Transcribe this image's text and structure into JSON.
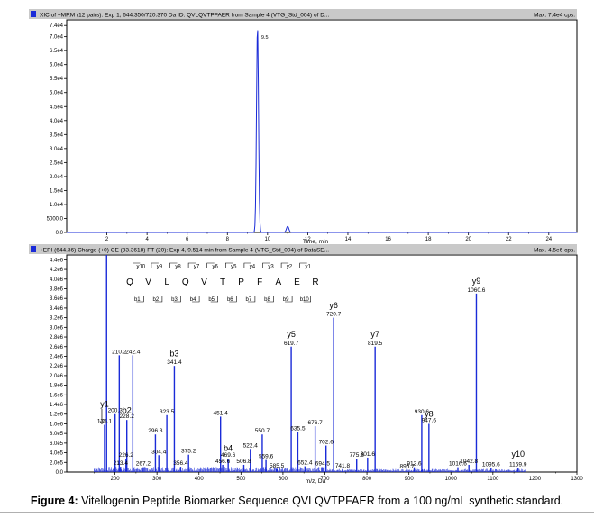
{
  "caption": {
    "label": "Figure 4:",
    "text": "Vitellogenin Peptide Biomarker Sequence QVLQVTPFAER from a 100 ng/mL synthetic standard."
  },
  "colors": {
    "trace": "#1a2bd8",
    "header": "#c9c9c9",
    "frame": "#000000"
  },
  "chart_data": [
    {
      "type": "line",
      "header": "XIC of +MRM (12 pairs): Exp 1, 644.350/720.370 Da ID: QVLQVTPFAER from Sample 4 (VTG_Std_004) of D...",
      "header_right": "Max. 7.4e4 cps.",
      "xlabel": "Time, min",
      "xlim": [
        0,
        25.4
      ],
      "ylim": [
        0,
        76000
      ],
      "x_ticks": [
        2,
        4,
        6,
        8,
        10,
        12,
        14,
        16,
        18,
        20,
        22,
        24
      ],
      "x_tick_labels": [
        "2",
        "4",
        "6",
        "8",
        "10",
        "12",
        "14",
        "16",
        "18",
        "20",
        "22",
        "24"
      ],
      "y_ticks": [
        0,
        5000,
        10000,
        15000,
        20000,
        25000,
        30000,
        35000,
        40000,
        45000,
        50000,
        55000,
        60000,
        65000,
        70000,
        74000
      ],
      "y_tick_labels": [
        "0.0",
        "5000.0",
        "1.0e4",
        "1.5e4",
        "2.0e4",
        "2.5e4",
        "3.0e4",
        "3.5e4",
        "4.0e4",
        "4.5e4",
        "5.0e4",
        "5.5e4",
        "6.0e4",
        "6.5e4",
        "7.0e4",
        "7.4e4"
      ],
      "peaks": [
        {
          "rt": 9.5,
          "height": 74000,
          "label": "9.5"
        },
        {
          "rt": 11.0,
          "height": 2200,
          "label": ""
        }
      ]
    },
    {
      "type": "bar",
      "header": "+EPI (644.36) Charge (+0) CE (33.3618) FT (20): Exp 4, 9.514 min from Sample 4 (VTG_Std_004) of DataSE...",
      "header_right": "Max. 4.5e6 cps.",
      "xlabel": "m/z, Da",
      "xlim": [
        85,
        1300
      ],
      "ylim": [
        0,
        4500000
      ],
      "x_ticks": [
        200,
        300,
        400,
        500,
        600,
        700,
        800,
        900,
        1000,
        1100,
        1200,
        1300
      ],
      "x_tick_labels": [
        "200",
        "300",
        "400",
        "500",
        "600",
        "700",
        "800",
        "900",
        "1000",
        "1100",
        "1200",
        "1300"
      ],
      "y_ticks": [
        0,
        200000,
        400000,
        600000,
        800000,
        1000000,
        1200000,
        1400000,
        1600000,
        1800000,
        2000000,
        2200000,
        2400000,
        2600000,
        2800000,
        3000000,
        3200000,
        3400000,
        3600000,
        3800000,
        4000000,
        4200000,
        4400000
      ],
      "y_tick_labels": [
        "0.0",
        "2.0e5",
        "4.0e5",
        "6.0e5",
        "8.0e5",
        "1.0e6",
        "1.2e6",
        "1.4e6",
        "1.6e6",
        "1.8e6",
        "2.0e6",
        "2.2e6",
        "2.4e6",
        "2.6e6",
        "2.8e6",
        "3.0e6",
        "3.2e6",
        "3.4e6",
        "3.6e6",
        "3.8e6",
        "4.0e6",
        "4.2e6",
        "4.4e6"
      ],
      "peaks": [
        {
          "mz": 175.1,
          "intensity": 980000,
          "label": "175.1"
        },
        {
          "mz": 180.0,
          "intensity": 4500000,
          "label": ""
        },
        {
          "mz": 200.3,
          "intensity": 1200000,
          "label": "200.3"
        },
        {
          "mz": 210.2,
          "intensity": 2420000,
          "label": "210.2"
        },
        {
          "mz": 213.4,
          "intensity": 110000,
          "label": "213.4"
        },
        {
          "mz": 226.2,
          "intensity": 280000,
          "label": "226.2"
        },
        {
          "mz": 228.2,
          "intensity": 1080000,
          "label": "228.2"
        },
        {
          "mz": 242.4,
          "intensity": 2420000,
          "label": "242.4"
        },
        {
          "mz": 267.2,
          "intensity": 100000,
          "label": "267.2"
        },
        {
          "mz": 296.3,
          "intensity": 780000,
          "label": "296.3"
        },
        {
          "mz": 304.4,
          "intensity": 350000,
          "label": "304.4"
        },
        {
          "mz": 323.5,
          "intensity": 1180000,
          "label": "323.5"
        },
        {
          "mz": 341.4,
          "intensity": 2200000,
          "label": "341.4"
        },
        {
          "mz": 356.4,
          "intensity": 110000,
          "label": "356.4"
        },
        {
          "mz": 375.2,
          "intensity": 360000,
          "label": "375.2"
        },
        {
          "mz": 451.4,
          "intensity": 1150000,
          "label": "451.4"
        },
        {
          "mz": 456.6,
          "intensity": 150000,
          "label": "456.6"
        },
        {
          "mz": 469.6,
          "intensity": 280000,
          "label": "469.6"
        },
        {
          "mz": 506.8,
          "intensity": 150000,
          "label": "506.8"
        },
        {
          "mz": 522.4,
          "intensity": 480000,
          "label": "522.4"
        },
        {
          "mz": 550.7,
          "intensity": 780000,
          "label": "550.7"
        },
        {
          "mz": 559.6,
          "intensity": 250000,
          "label": "559.6"
        },
        {
          "mz": 585.5,
          "intensity": 60000,
          "label": "585.5"
        },
        {
          "mz": 619.7,
          "intensity": 2600000,
          "label": "619.7"
        },
        {
          "mz": 635.5,
          "intensity": 830000,
          "label": "635.5"
        },
        {
          "mz": 652.4,
          "intensity": 120000,
          "label": "652.4"
        },
        {
          "mz": 676.7,
          "intensity": 950000,
          "label": "676.7"
        },
        {
          "mz": 694.5,
          "intensity": 100000,
          "label": "694.5"
        },
        {
          "mz": 702.6,
          "intensity": 550000,
          "label": "702.6"
        },
        {
          "mz": 720.7,
          "intensity": 3200000,
          "label": "720.7"
        },
        {
          "mz": 741.8,
          "intensity": 60000,
          "label": "741.8"
        },
        {
          "mz": 775.6,
          "intensity": 280000,
          "label": "775.6"
        },
        {
          "mz": 801.6,
          "intensity": 300000,
          "label": "801.6"
        },
        {
          "mz": 819.5,
          "intensity": 2600000,
          "label": "819.5"
        },
        {
          "mz": 895.7,
          "intensity": 50000,
          "label": "895.7"
        },
        {
          "mz": 912.6,
          "intensity": 100000,
          "label": "912.6"
        },
        {
          "mz": 930.6,
          "intensity": 1180000,
          "label": "930.6"
        },
        {
          "mz": 947.6,
          "intensity": 1000000,
          "label": "947.6"
        },
        {
          "mz": 1016.6,
          "intensity": 100000,
          "label": "1016.6"
        },
        {
          "mz": 1042.8,
          "intensity": 150000,
          "label": "1042.8"
        },
        {
          "mz": 1060.6,
          "intensity": 3700000,
          "label": "1060.6"
        },
        {
          "mz": 1095.6,
          "intensity": 80000,
          "label": "1095.6"
        },
        {
          "mz": 1159.9,
          "intensity": 80000,
          "label": "1159.9"
        }
      ],
      "fragment_annotations": [
        {
          "text": "y1",
          "mz": 175.1,
          "intensity": 1350000
        },
        {
          "text": "b2",
          "mz": 228.2,
          "intensity": 1220000
        },
        {
          "text": "b3",
          "mz": 341.4,
          "intensity": 2400000
        },
        {
          "text": "b4",
          "mz": 469.6,
          "intensity": 440000
        },
        {
          "text": "y5",
          "mz": 619.7,
          "intensity": 2800000
        },
        {
          "text": "y6",
          "mz": 720.7,
          "intensity": 3400000
        },
        {
          "text": "y7",
          "mz": 819.5,
          "intensity": 2800000
        },
        {
          "text": "y8",
          "mz": 947.6,
          "intensity": 1150000
        },
        {
          "text": "y9",
          "mz": 1060.6,
          "intensity": 3900000
        },
        {
          "text": "y10",
          "mz": 1159.9,
          "intensity": 320000
        }
      ],
      "sequence": {
        "residues": [
          "Q",
          "V",
          "L",
          "Q",
          "V",
          "T",
          "P",
          "F",
          "A",
          "E",
          "R"
        ],
        "y_ions": [
          "y10",
          "y9",
          "y8",
          "y7",
          "y6",
          "y5",
          "y4",
          "y3",
          "y2",
          "y1"
        ],
        "b_ions": [
          "b1",
          "b2",
          "b3",
          "b4",
          "b5",
          "b6",
          "b7",
          "b8",
          "b9",
          "b10"
        ]
      }
    }
  ]
}
